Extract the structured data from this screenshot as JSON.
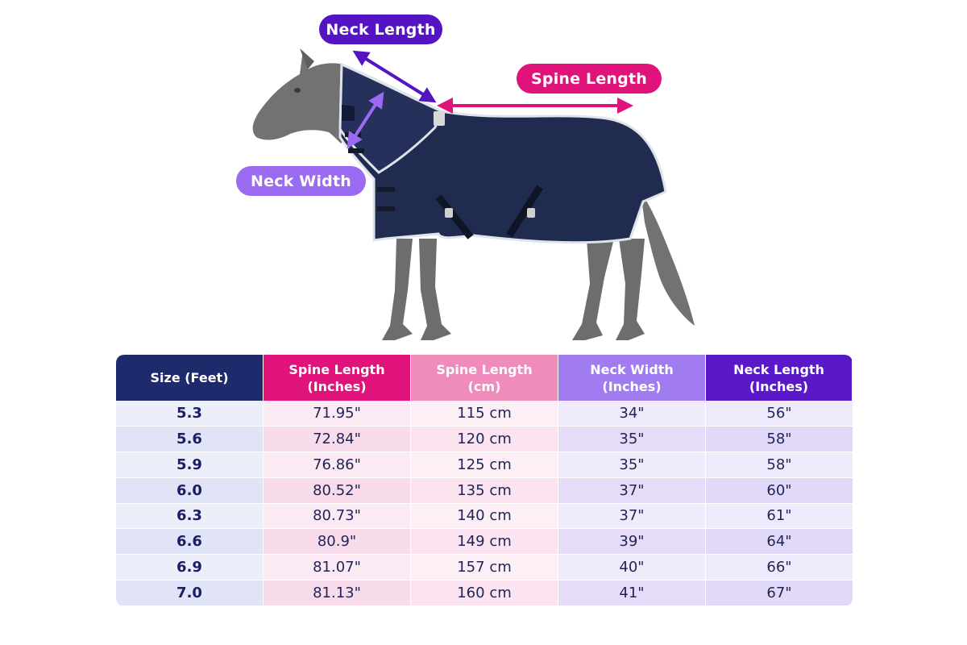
{
  "labels": {
    "neck_length": "Neck Length",
    "spine_length": "Spine Length",
    "neck_width": "Neck Width"
  },
  "colors": {
    "neck_length": "#5514c4",
    "spine_length": "#e0137a",
    "neck_width": "#9a6af0",
    "rug": "#1f2b4f",
    "horse": "#6d6d6d"
  },
  "table": {
    "headers": [
      "Size (Feet)",
      "Spine Length\n(Inches)",
      "Spine Length\n(cm)",
      "Neck Width\n(Inches)",
      "Neck Length\n(Inches)"
    ],
    "rows": [
      [
        "5.3",
        "71.95\"",
        "115 cm",
        "34\"",
        "56\""
      ],
      [
        "5.6",
        "72.84\"",
        "120 cm",
        "35\"",
        "58\""
      ],
      [
        "5.9",
        "76.86\"",
        "125 cm",
        "35\"",
        "58\""
      ],
      [
        "6.0",
        "80.52\"",
        "135 cm",
        "37\"",
        "60\""
      ],
      [
        "6.3",
        "80.73\"",
        "140 cm",
        "37\"",
        "61\""
      ],
      [
        "6.6",
        "80.9\"",
        "149 cm",
        "39\"",
        "64\""
      ],
      [
        "6.9",
        "81.07\"",
        "157 cm",
        "40\"",
        "66\""
      ],
      [
        "7.0",
        "81.13\"",
        "160 cm",
        "41\"",
        "67\""
      ]
    ]
  }
}
